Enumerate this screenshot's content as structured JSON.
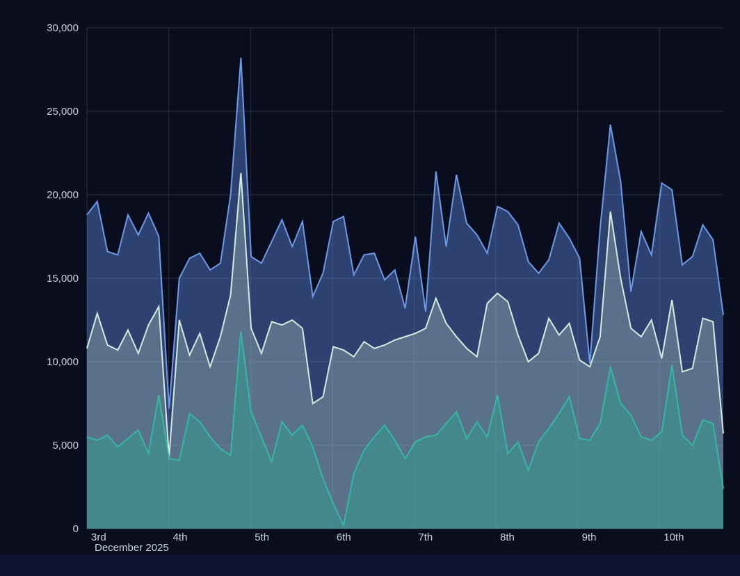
{
  "chart_data": {
    "type": "area",
    "title": "",
    "x_axis": {
      "month_label": "December 2025",
      "domain": [
        3,
        10.78
      ],
      "ticks": [
        {
          "day": 3,
          "label": "3rd"
        },
        {
          "day": 4,
          "label": "4th"
        },
        {
          "day": 5,
          "label": "5th"
        },
        {
          "day": 6,
          "label": "6th"
        },
        {
          "day": 7,
          "label": "7th"
        },
        {
          "day": 8,
          "label": "8th"
        },
        {
          "day": 9,
          "label": "9th"
        },
        {
          "day": 10,
          "label": "10th"
        }
      ]
    },
    "y_axis": {
      "min": 0,
      "max": 30000,
      "tick_step": 5000,
      "tick_labels": [
        "0",
        "5,000",
        "10,000",
        "15,000",
        "20,000",
        "25,000",
        "30,000"
      ]
    },
    "grid": true,
    "legend": "none",
    "colors": {
      "background": "#0a0d1d",
      "gridline": "rgba(214,223,238,0.16)",
      "axis_text": "#ccd3df",
      "series_blue": "#6d9ae8",
      "series_mid": "#d6ebdd",
      "series_teal": "#35b8a2"
    },
    "series": [
      {
        "name": "blue",
        "color": "#6d9ae8",
        "fill": "rgba(95,140,228,0.42)",
        "values": [
          18800,
          19600,
          16600,
          16400,
          18800,
          17600,
          18900,
          17500,
          7200,
          15000,
          16200,
          16500,
          15500,
          15900,
          20000,
          28200,
          16300,
          15900,
          17200,
          18500,
          16900,
          18400,
          13900,
          15300,
          18400,
          18700,
          15200,
          16400,
          16500,
          14900,
          15500,
          13200,
          17500,
          13000,
          21400,
          16900,
          21200,
          18300,
          17600,
          16500,
          19300,
          19000,
          18200,
          16000,
          15300,
          16100,
          18300,
          17400,
          16200,
          9900,
          18000,
          24200,
          20800,
          14200,
          17800,
          16400,
          20700,
          20300,
          15800,
          16300,
          18200,
          17300,
          12800
        ]
      },
      {
        "name": "mid",
        "color": "#d6ebdd",
        "fill": "rgba(186,215,200,0.32)",
        "values": [
          10800,
          12900,
          11000,
          10700,
          11900,
          10500,
          12200,
          13300,
          4300,
          12500,
          10400,
          11700,
          9700,
          11500,
          14000,
          21300,
          12000,
          10500,
          12400,
          12200,
          12500,
          12000,
          7500,
          7900,
          10900,
          10700,
          10300,
          11200,
          10800,
          11000,
          11300,
          11500,
          11700,
          12000,
          13800,
          12300,
          11500,
          10800,
          10300,
          13500,
          14100,
          13600,
          11600,
          10000,
          10500,
          12600,
          11600,
          12300,
          10100,
          9700,
          11500,
          19000,
          15000,
          12000,
          11500,
          12500,
          10200,
          13700,
          9400,
          9600,
          12600,
          12400,
          5700
        ]
      },
      {
        "name": "teal",
        "color": "#35b8a2",
        "fill": "rgba(46,160,143,0.5)",
        "values": [
          5500,
          5300,
          5600,
          4900,
          5400,
          5900,
          4500,
          8000,
          4200,
          4100,
          6900,
          6400,
          5500,
          4800,
          4400,
          11800,
          7000,
          5500,
          4000,
          6400,
          5600,
          6200,
          4900,
          3000,
          1500,
          200,
          3300,
          4700,
          5500,
          6200,
          5300,
          4200,
          5200,
          5500,
          5600,
          6300,
          7000,
          5400,
          6400,
          5500,
          8000,
          4500,
          5200,
          3500,
          5200,
          6000,
          6900,
          7900,
          5400,
          5300,
          6300,
          9700,
          7500,
          6800,
          5500,
          5300,
          5800,
          9800,
          5600,
          5000,
          6500,
          6300,
          2400
        ]
      }
    ]
  }
}
